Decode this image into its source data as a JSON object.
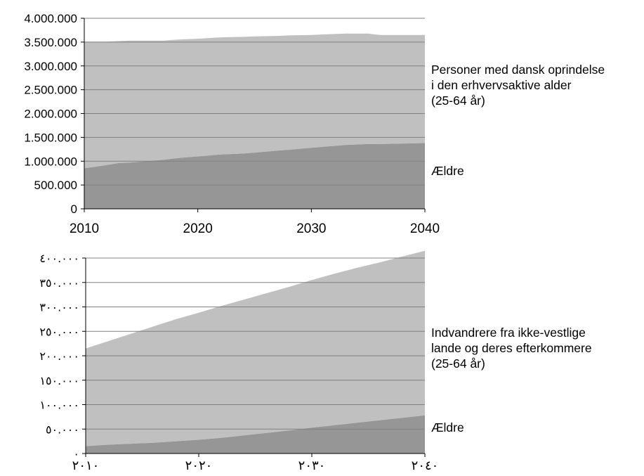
{
  "chart_data": [
    {
      "type": "area",
      "stacked": true,
      "xlim": [
        2010,
        2040
      ],
      "ylim": [
        0,
        4000000
      ],
      "grid": true,
      "x": [
        2010,
        2012,
        2013,
        2014,
        2016,
        2017,
        2018,
        2019,
        2020,
        2022,
        2024,
        2025,
        2027,
        2028,
        2030,
        2031,
        2033,
        2035,
        2036,
        2040
      ],
      "series": [
        {
          "name": "Ældre",
          "color": "#969696",
          "values": [
            850000,
            920000,
            960000,
            970000,
            1010000,
            1030000,
            1060000,
            1080000,
            1100000,
            1140000,
            1160000,
            1180000,
            1220000,
            1240000,
            1280000,
            1300000,
            1340000,
            1360000,
            1360000,
            1380000
          ]
        },
        {
          "name": "Personer med dansk oprindelse\ni den erhvervsaktive alder\n(25-64 år)",
          "color": "#c0c0c0",
          "values": [
            2660000,
            2590000,
            2560000,
            2560000,
            2520000,
            2500000,
            2490000,
            2480000,
            2470000,
            2460000,
            2450000,
            2440000,
            2410000,
            2400000,
            2370000,
            2360000,
            2340000,
            2320000,
            2290000,
            2270000
          ]
        }
      ],
      "yticks": [
        "0",
        "500.000",
        "1.000.000",
        "1.500.000",
        "2.000.000",
        "2.500.000",
        "3.000.000",
        "3.500.000",
        "4.000.000"
      ],
      "xticks": [
        "2010",
        "2020",
        "2030",
        "2040"
      ]
    },
    {
      "type": "area",
      "stacked": true,
      "xlim": [
        2010,
        2040
      ],
      "ylim": [
        0,
        400000
      ],
      "grid": true,
      "x": [
        2010,
        2012,
        2014,
        2016,
        2018,
        2020,
        2022,
        2024,
        2026,
        2028,
        2030,
        2032,
        2034,
        2036,
        2038,
        2040
      ],
      "series": [
        {
          "name": "Ældre",
          "color": "#969696",
          "values": [
            15000,
            18000,
            20000,
            22000,
            25000,
            28000,
            32000,
            37000,
            42000,
            47000,
            53000,
            58000,
            63000,
            68000,
            73000,
            78000
          ]
        },
        {
          "name": "Indvandrere fra ikke-vestlige\nlande og deres efterkommere\n(25-64 år)",
          "color": "#c0c0c0",
          "values": [
            200000,
            212000,
            225000,
            238000,
            250000,
            260000,
            270000,
            278000,
            286000,
            294000,
            302000,
            310000,
            317000,
            323000,
            330000,
            337000
          ]
        }
      ],
      "yticks": [
        "٠",
        "٥٠.٠٠٠",
        "١٠٠.٠٠٠",
        "١٥٠.٠٠٠",
        "٢٠٠.٠٠٠",
        "٢٥٠.٠٠٠",
        "٣٠٠.٠٠٠",
        "٣٥٠.٠٠٠",
        "٤٠٠.٠٠٠"
      ],
      "xticks": [
        "٢٠١٠",
        "٢٠٢٠",
        "٢٠٣٠",
        "٢٠٤٠"
      ]
    }
  ],
  "labels": {
    "top_upper": "Personer med dansk oprindelse\ni den erhvervsaktive alder\n(25-64 år)",
    "top_lower": "Ældre",
    "bottom_upper": "Indvandrere fra ikke-vestlige\nlande og deres efterkommere\n(25-64 år)",
    "bottom_lower": "Ældre"
  }
}
